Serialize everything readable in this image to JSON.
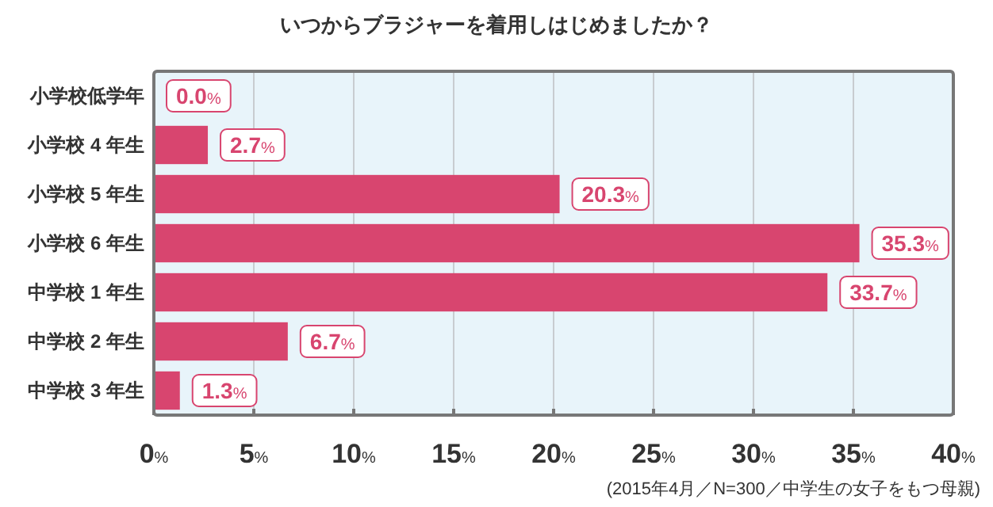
{
  "chart_data": {
    "type": "bar",
    "orientation": "horizontal",
    "title": "いつからブラジャーを着用しはじめましたか？",
    "categories": [
      "小学校低学年",
      "小学校 4 年生",
      "小学校 5 年生",
      "小学校 6 年生",
      "中学校 1 年生",
      "中学校 2 年生",
      "中学校 3 年生"
    ],
    "values": [
      0.0,
      2.7,
      20.3,
      35.3,
      33.7,
      6.7,
      1.3
    ],
    "value_labels": [
      "0.0%",
      "2.7%",
      "20.3%",
      "35.3%",
      "33.7%",
      "6.7%",
      "1.3%"
    ],
    "color": "#d8456f",
    "xlim": [
      0,
      40
    ],
    "xticks": [
      {
        "value": 0,
        "label": "0%"
      },
      {
        "value": 5,
        "label": "5%"
      },
      {
        "value": 10,
        "label": "10%"
      },
      {
        "value": 15,
        "label": "15%"
      },
      {
        "value": 20,
        "label": "20%"
      },
      {
        "value": 25,
        "label": "25%"
      },
      {
        "value": 30,
        "label": "30%"
      },
      {
        "value": 35,
        "label": "35%"
      },
      {
        "value": 40,
        "label": "40%"
      }
    ],
    "grid": "x",
    "annotations": [
      "(2015年4月／N=300／中学生の女子をもつ母親)"
    ]
  }
}
